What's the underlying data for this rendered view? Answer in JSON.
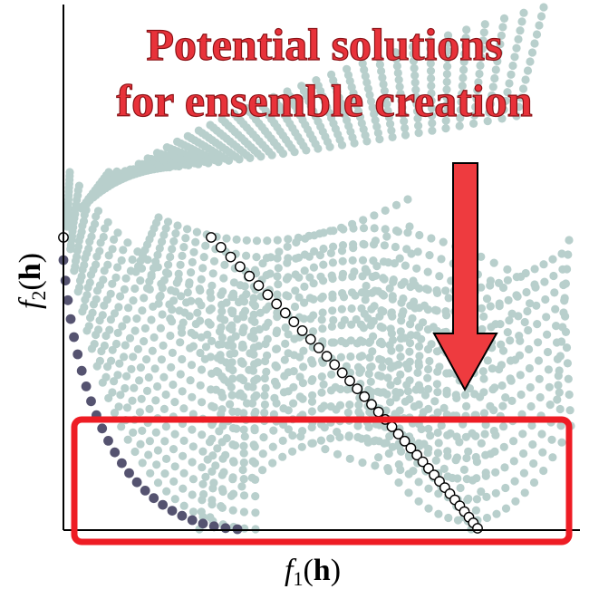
{
  "title": {
    "line1": "Potential solutions",
    "line2": "for ensemble creation"
  },
  "axes": {
    "x_label": {
      "f": "f",
      "sub": "1",
      "open": "(",
      "h": "h",
      "close": ")"
    },
    "y_label": {
      "f": "f",
      "sub": "2",
      "open": "(",
      "h": "h",
      "close": ")"
    }
  },
  "colors": {
    "cloud": "#b8cfcc",
    "pareto_filled": "#555370",
    "pareto_outline": "#000000",
    "highlight": "#ee1c24",
    "arrow": "#ee3b3f",
    "title": "#e8323a"
  },
  "icons": {
    "arrow": "down-arrow-icon",
    "highlight_box": "rectangle-outline"
  }
}
